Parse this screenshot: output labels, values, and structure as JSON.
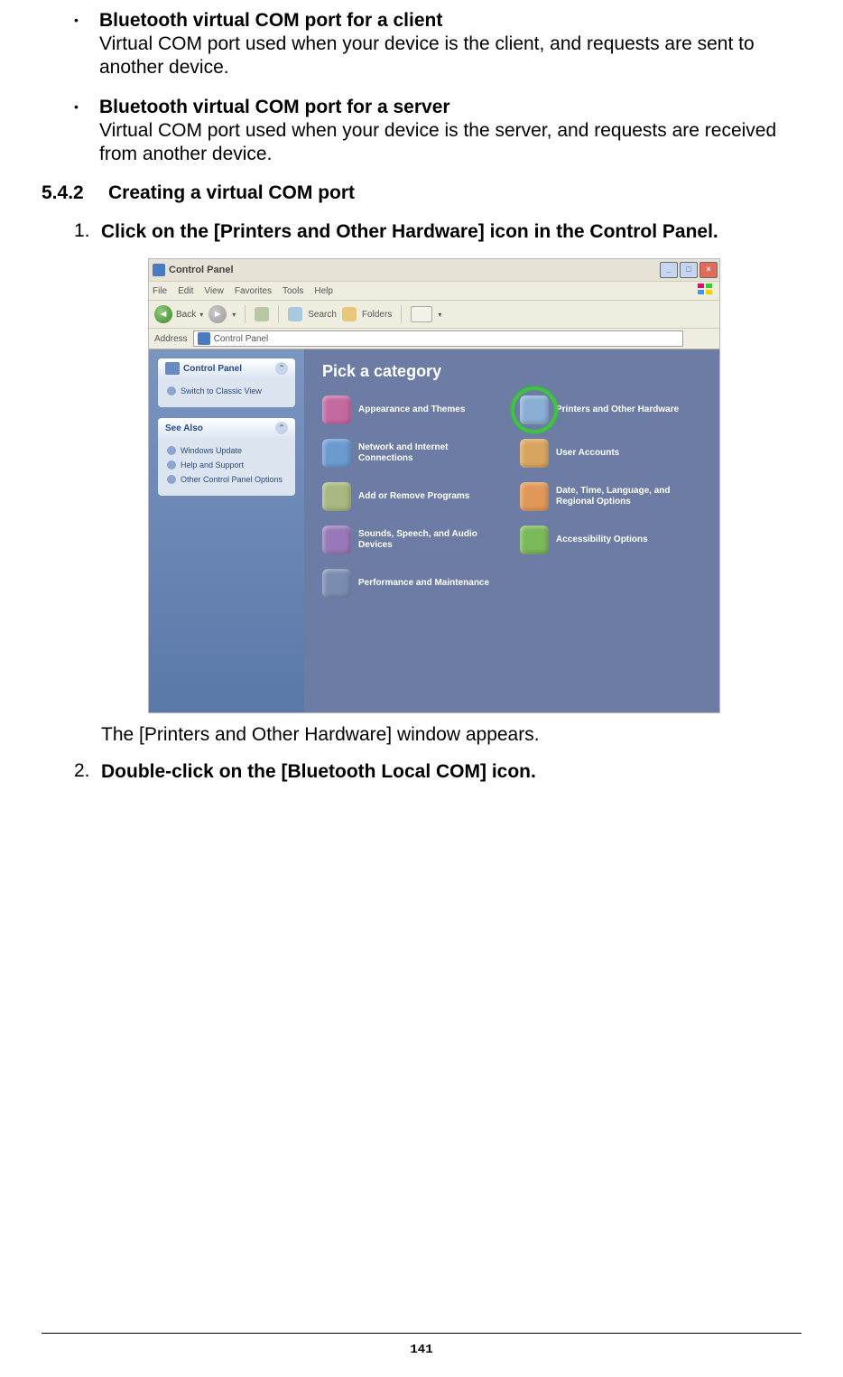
{
  "doc": {
    "bullets": [
      {
        "title": "Bluetooth virtual COM port for a client",
        "text": "Virtual COM port used when your device is the client, and requests are sent to another device."
      },
      {
        "title": "Bluetooth virtual COM port for a server",
        "text": "Virtual COM port used when your device is the server, and requests are received from another device."
      }
    ],
    "section_num": "5.4.2",
    "section_title": "Creating a virtual COM port",
    "step1_num": "1.",
    "step1_text": "Click on the [Printers and Other Hardware] icon in the Control Panel.",
    "post_img_text": "The [Printers and Other Hardware] window appears.",
    "step2_num": "2.",
    "step2_text": "Double-click on the [Bluetooth Local COM] icon.",
    "page_number": "141"
  },
  "screenshot": {
    "window_title": "Control Panel",
    "menus": [
      "File",
      "Edit",
      "View",
      "Favorites",
      "Tools",
      "Help"
    ],
    "toolbar": {
      "back": "Back",
      "search": "Search",
      "folders": "Folders"
    },
    "address_label": "Address",
    "address_value": "Control Panel",
    "side": {
      "box1_title": "Control Panel",
      "box1_item": "Switch to Classic View",
      "box2_title": "See Also",
      "box2_items": [
        "Windows Update",
        "Help and Support",
        "Other Control Panel Options"
      ]
    },
    "main_heading": "Pick a category",
    "categories": [
      {
        "label": "Appearance and Themes",
        "color": "#c46aa0"
      },
      {
        "label": "Printers and Other Hardware",
        "color": "#8aaed4",
        "highlight": true
      },
      {
        "label": "Network and Internet Connections",
        "color": "#6a9ad0"
      },
      {
        "label": "User Accounts",
        "color": "#d8a560"
      },
      {
        "label": "Add or Remove Programs",
        "color": "#a8b880"
      },
      {
        "label": "Date, Time, Language, and Regional Options",
        "color": "#e09858"
      },
      {
        "label": "Sounds, Speech, and Audio Devices",
        "color": "#9878b8"
      },
      {
        "label": "Accessibility Options",
        "color": "#7ab85a"
      },
      {
        "label": "Performance and Maintenance",
        "color": "#7a8cb0"
      }
    ],
    "colors": {
      "mainpane_bg": "#6c7ca4",
      "sidepane_bg_top": "#7a95c0",
      "sidepane_bg_bot": "#5a78a8",
      "highlight_ring": "#3cc43c"
    }
  }
}
